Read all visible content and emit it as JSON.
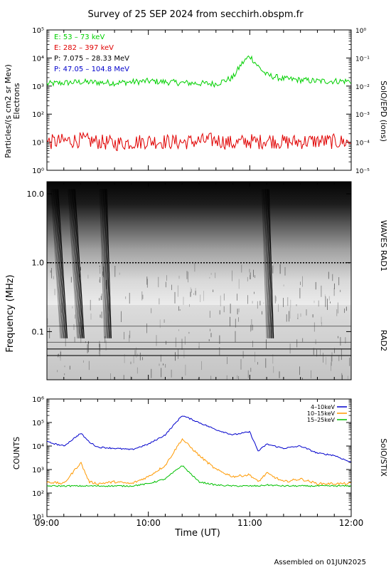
{
  "title": "Survey of 25 SEP 2024 from secchirh.obspm.fr",
  "footer": "Assembled on 01JUN2025",
  "x_axis": {
    "label": "Time (UT)",
    "range": [
      "09:00",
      "12:00"
    ],
    "ticks": [
      "09:00",
      "10:00",
      "11:00",
      "12:00"
    ]
  },
  "colors": {
    "electron_low": "#00d000",
    "electron_high": "#e00000",
    "proton_low": "#000000",
    "proton_high": "#0000cc",
    "stix_low": "#0000cc",
    "stix_mid": "#ff9900",
    "stix_high": "#00c000"
  },
  "panels": {
    "epd": {
      "ylabel_line1": "Particles/(s cm2 sr Mev)",
      "ylabel_line2": "Electrons",
      "right_label": "SolO/EPD (ions)",
      "left_ticks": [
        "10⁰",
        "10¹",
        "10²",
        "10³",
        "10⁴",
        "10⁵"
      ],
      "right_ticks": [
        "10⁻⁵",
        "10⁻⁴",
        "10⁻³",
        "10⁻²",
        "10⁻¹",
        "10⁰"
      ],
      "legend": [
        "E: 53 – 73 keV",
        "E: 282 – 397 keV",
        "P: 7.075 – 28.33 MeV",
        "P: 47.05 – 104.8 MeV"
      ]
    },
    "spectrogram": {
      "ylabel": "Frequency (MHz)",
      "ticks": [
        "0.1",
        "1.0",
        "10.0"
      ],
      "label_rad1": "WAVES RAD1",
      "label_rad2": "RAD2"
    },
    "stix": {
      "ylabel": "COUNTS",
      "right_label": "SolO/STIX",
      "ticks": [
        "10¹",
        "10²",
        "10³",
        "10⁴",
        "10⁵",
        "10⁶"
      ],
      "legend": [
        "4–10keV",
        "10–15keV",
        "15–25keV"
      ]
    }
  },
  "chart_data": [
    {
      "type": "line",
      "title": "SolO/EPD (ions)",
      "xlabel": "Time (UT)",
      "ylabel": "Particles/(s cm2 sr Mev) Electrons",
      "xlim": [
        "09:00",
        "12:00"
      ],
      "y_scale": "log",
      "ylim": [
        1,
        100000
      ],
      "right_ylim": [
        1e-05,
        1
      ],
      "x": [
        "09:00",
        "09:20",
        "09:40",
        "10:00",
        "10:20",
        "10:40",
        "10:50",
        "10:55",
        "11:00",
        "11:05",
        "11:10",
        "11:20",
        "11:40",
        "12:00"
      ],
      "series": [
        {
          "name": "E: 53 – 73 keV",
          "values": [
            1200,
            1400,
            1300,
            1500,
            1300,
            1200,
            2000,
            6000,
            12000,
            5000,
            2500,
            1800,
            1500,
            1500
          ]
        },
        {
          "name": "E: 282 – 397 keV",
          "values": [
            10,
            12,
            9,
            11,
            10,
            12,
            9,
            10,
            11,
            10,
            12,
            10,
            11,
            10
          ]
        }
      ]
    },
    {
      "type": "heatmap",
      "title": "WAVES RAD1 / RAD2",
      "xlabel": "Time (UT)",
      "ylabel": "Frequency (MHz)",
      "xlim": [
        "09:00",
        "12:00"
      ],
      "y_scale": "log",
      "ylim": [
        0.02,
        15
      ],
      "bursts": [
        {
          "name": "type III burst",
          "start_time": "09:08",
          "end_time": "09:12"
        },
        {
          "name": "type III burst",
          "start_time": "09:18",
          "end_time": "09:22"
        },
        {
          "name": "type III burst",
          "start_time": "09:34",
          "end_time": "09:38"
        },
        {
          "name": "type III burst",
          "start_time": "11:10",
          "end_time": "11:14"
        }
      ]
    },
    {
      "type": "line",
      "title": "SolO/STIX",
      "xlabel": "Time (UT)",
      "ylabel": "COUNTS",
      "xlim": [
        "09:00",
        "12:00"
      ],
      "y_scale": "log",
      "ylim": [
        10,
        1000000
      ],
      "x": [
        "09:00",
        "09:10",
        "09:20",
        "09:25",
        "09:30",
        "09:40",
        "09:50",
        "10:00",
        "10:10",
        "10:20",
        "10:30",
        "10:40",
        "10:50",
        "11:00",
        "11:05",
        "11:10",
        "11:20",
        "11:30",
        "11:40",
        "11:50",
        "12:00"
      ],
      "series": [
        {
          "name": "4–10keV",
          "values": [
            15000,
            10000,
            35000,
            15000,
            9000,
            8000,
            7000,
            12000,
            30000,
            200000,
            100000,
            50000,
            30000,
            40000,
            6000,
            12000,
            8000,
            10000,
            5000,
            4000,
            2000
          ]
        },
        {
          "name": "10–15keV",
          "values": [
            300,
            250,
            2000,
            300,
            250,
            300,
            250,
            500,
            1500,
            20000,
            4000,
            1000,
            500,
            600,
            300,
            700,
            300,
            400,
            250,
            250,
            250
          ]
        },
        {
          "name": "15–25keV",
          "values": [
            200,
            200,
            200,
            200,
            200,
            200,
            200,
            250,
            400,
            1500,
            300,
            220,
            200,
            200,
            200,
            220,
            200,
            200,
            200,
            200,
            200
          ]
        }
      ]
    }
  ]
}
